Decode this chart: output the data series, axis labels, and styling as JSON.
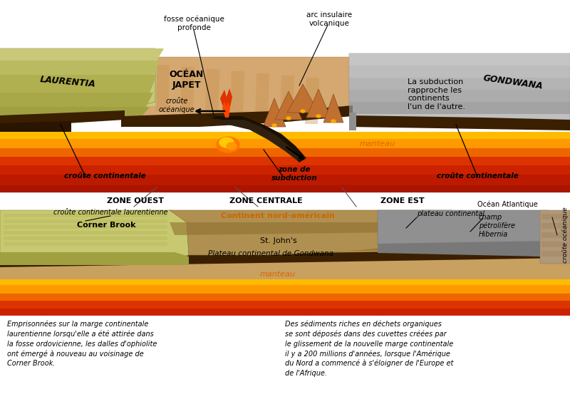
{
  "bg_color": "#ffffff",
  "colors": {
    "laurentia_top": "#c8c87a",
    "laurentia_side": "#a0a050",
    "laurentia_face": "#b0b060",
    "ocean_japet_top": "#d4a870",
    "ocean_japet_dark": "#c89050",
    "gondwana_top": "#c0c0c0",
    "gondwana_side": "#909090",
    "gondwana_face": "#a8a8a8",
    "mantle_red": "#cc2200",
    "mantle_orange": "#e04400",
    "mantle_bright": "#f06600",
    "mantle_yellow": "#ff9900",
    "mantle_lightyellow": "#ffbb00",
    "crust_dark": "#3a2000",
    "crust_dark2": "#2a1500",
    "subduction_dark": "#1a1000",
    "lava_orange": "#ff7700",
    "lava_yellow": "#ffcc00",
    "lava_red": "#dd3300",
    "volcano_brown": "#c07030",
    "bottom_laurentia": "#c8c870",
    "bottom_laurentia_dark": "#a0a040",
    "bottom_nam": "#b09050",
    "bottom_nam_dark": "#907030",
    "bottom_gondwana_sed": "#c8a060",
    "bottom_shelf": "#909090",
    "bottom_shelf_dark": "#787878",
    "bottom_oceanic": "#b09878",
    "arrow_color": "#000000",
    "line_color": "#555555",
    "manteau_text": "#dd6600"
  },
  "top_labels": {
    "laurentia": "LAURENTIA",
    "ocean_japet": "OCÉAN\nJAPET",
    "gondwana": "GONDWANA",
    "croute_oceanique": "croûte\nocéanique",
    "fosse": "fosse océanique\nprofonde",
    "arc_insulaire": "arc insulaire\nvolcanique",
    "subduction_text": "La subduction\nrapproche les\ncontinents\nl'un de l'autre.",
    "manteau": "manteau",
    "croute_cont_left": "croûte continentale",
    "croute_cont_right": "croûte continentale",
    "zone_subduction": "zone de\nsubduction"
  },
  "bottom_labels": {
    "zone_ouest": "ZONE OUEST",
    "zone_centrale": "ZONE CENTRALE",
    "zone_est": "ZONE EST",
    "ocean_atlantique": "Océan Atlantique",
    "croute_laurentienne": "croûte continentale laurentienne",
    "corner_brook": "Corner Brook",
    "continent_nordam": "Continent nord-américain",
    "st_johns": "St. John's",
    "plateau_gondwana": "Plateau continental de Gondwana",
    "plateau_continental": "plateau continental",
    "champ_petro": "champ\npétrolifère\nHibernia",
    "croute_oceanique_b": "croûte océanique",
    "manteau": "manteau"
  },
  "caption_left": "Emprisonnées sur la marge continentale\nlaurentienne lorsqu'elle a été attirée dans\nla fosse ordovicienne, les dalles d'ophiolite\nont émergé à nouveau au voisinage de\nCorner Brook.",
  "caption_right": "Des sédiments riches en déchets organiques\nse sont déposés dans des cuvettes créées par\nle glissement de la nouvelle marge continentale\nil y a 200 millions d'années, lorsque l'Amérique\ndu Nord a commencé à s'éloigner de l'Europe et\nde l'Afrique."
}
